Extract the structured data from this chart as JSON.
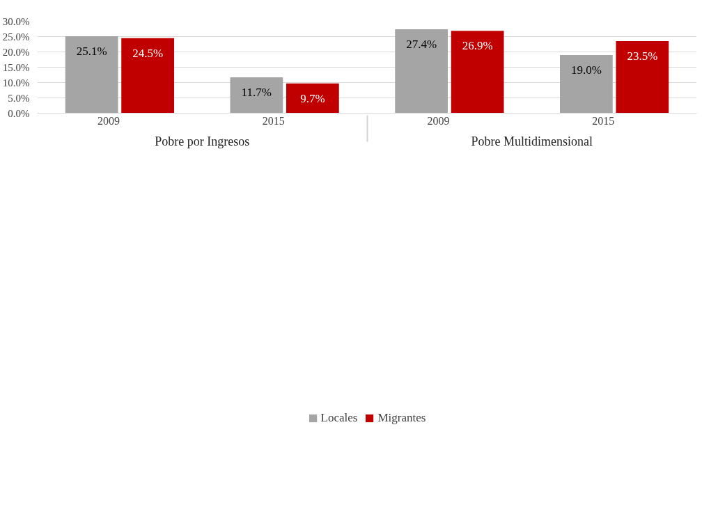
{
  "chart_data": {
    "type": "bar",
    "categories": [
      "2009",
      "2015",
      "2009",
      "2015"
    ],
    "annotations": [
      "Pobre por Ingresos",
      "Pobre Multidimensional"
    ],
    "series": [
      {
        "name": "Locales",
        "color": "#a5a5a5",
        "values": [
          25.1,
          11.7,
          27.4,
          19.0
        ],
        "value_labels": [
          "25.1%",
          "11.7%",
          "27.4%",
          "19.0%"
        ]
      },
      {
        "name": "Migrantes",
        "color": "#c00000",
        "values": [
          24.5,
          9.7,
          26.9,
          23.5
        ],
        "value_labels": [
          "24.5%",
          "9.7%",
          "26.9%",
          "23.5%"
        ]
      }
    ],
    "ylim": [
      0,
      30
    ],
    "yticks": [
      {
        "value": 0,
        "label": "0.0%"
      },
      {
        "value": 5,
        "label": "5.0%"
      },
      {
        "value": 10,
        "label": "10.0%"
      },
      {
        "value": 15,
        "label": "15.0%"
      },
      {
        "value": 20,
        "label": "20.0%"
      },
      {
        "value": 25,
        "label": "25.0%"
      },
      {
        "value": 30,
        "label": "30.0%"
      }
    ],
    "grid": "y",
    "legend": "bottom"
  }
}
